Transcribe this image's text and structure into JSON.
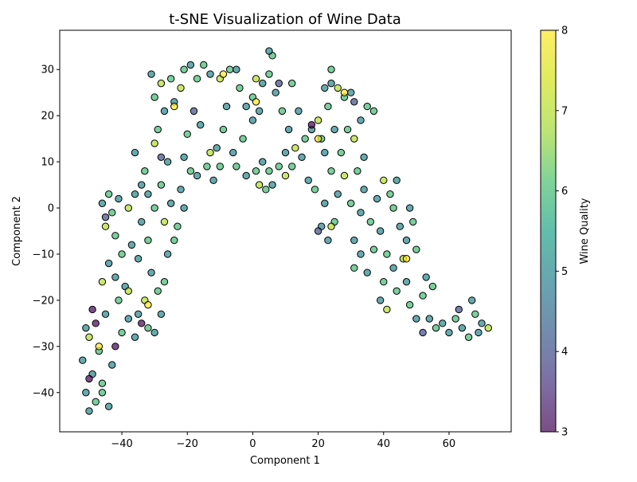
{
  "chart_data": {
    "type": "scatter",
    "title": "t-SNE Visualization of Wine Data",
    "xlabel": "Component 1",
    "ylabel": "Component 2",
    "xlim": [
      -59,
      79
    ],
    "ylim": [
      -48.5,
      38.5
    ],
    "xticks": [
      -40,
      -20,
      0,
      20,
      40,
      60
    ],
    "yticks": [
      -40,
      -30,
      -20,
      -10,
      0,
      10,
      20,
      30
    ],
    "grid": false,
    "colorbar": {
      "label": "Wine Quality",
      "min": 3,
      "max": 8,
      "ticks": [
        3,
        4,
        5,
        6,
        7,
        8
      ],
      "colormap": "viridis",
      "alpha": 0.7
    },
    "marker_edge_color": "#000000",
    "points": [
      {
        "x": -50,
        "y": -44,
        "q": 5
      },
      {
        "x": -48,
        "y": -42,
        "q": 6
      },
      {
        "x": -51,
        "y": -40,
        "q": 5
      },
      {
        "x": -46,
        "y": -38,
        "q": 6
      },
      {
        "x": -49,
        "y": -36,
        "q": 5
      },
      {
        "x": -52,
        "y": -33,
        "q": 5
      },
      {
        "x": -47,
        "y": -31,
        "q": 6
      },
      {
        "x": -50,
        "y": -28,
        "q": 7
      },
      {
        "x": -51,
        "y": -26,
        "q": 5
      },
      {
        "x": -48,
        "y": -25,
        "q": 3
      },
      {
        "x": -45,
        "y": -23,
        "q": 5
      },
      {
        "x": -44,
        "y": -43,
        "q": 5
      },
      {
        "x": -46,
        "y": -40,
        "q": 6
      },
      {
        "x": -43,
        "y": -34,
        "q": 5
      },
      {
        "x": -42,
        "y": -30,
        "q": 3
      },
      {
        "x": -40,
        "y": -27,
        "q": 6
      },
      {
        "x": -38,
        "y": -24,
        "q": 5
      },
      {
        "x": -41,
        "y": -20,
        "q": 6
      },
      {
        "x": -39,
        "y": -17,
        "q": 5
      },
      {
        "x": -42,
        "y": -15,
        "q": 5
      },
      {
        "x": -46,
        "y": -16,
        "q": 7
      },
      {
        "x": -44,
        "y": -12,
        "q": 5
      },
      {
        "x": -40,
        "y": -10,
        "q": 6
      },
      {
        "x": -37,
        "y": -8,
        "q": 5
      },
      {
        "x": -42,
        "y": -6,
        "q": 6
      },
      {
        "x": -45,
        "y": -4,
        "q": 7
      },
      {
        "x": -43,
        "y": -1,
        "q": 6
      },
      {
        "x": -46,
        "y": 1,
        "q": 5
      },
      {
        "x": -44,
        "y": 3,
        "q": 6
      },
      {
        "x": -41,
        "y": 2,
        "q": 5
      },
      {
        "x": -38,
        "y": 0,
        "q": 7
      },
      {
        "x": -36,
        "y": 3,
        "q": 5
      },
      {
        "x": -34,
        "y": 5,
        "q": 5
      },
      {
        "x": -36,
        "y": 12,
        "q": 5
      },
      {
        "x": -33,
        "y": 8,
        "q": 6
      },
      {
        "x": -32,
        "y": 3,
        "q": 5
      },
      {
        "x": -30,
        "y": 0,
        "q": 6
      },
      {
        "x": -34,
        "y": -3,
        "q": 5
      },
      {
        "x": -32,
        "y": -7,
        "q": 6
      },
      {
        "x": -35,
        "y": -11,
        "q": 5
      },
      {
        "x": -31,
        "y": -14,
        "q": 5
      },
      {
        "x": -29,
        "y": -18,
        "q": 6
      },
      {
        "x": -33,
        "y": -20,
        "q": 7
      },
      {
        "x": -35,
        "y": -23,
        "q": 5
      },
      {
        "x": -32,
        "y": -26,
        "q": 6
      },
      {
        "x": -36,
        "y": -28,
        "q": 5
      },
      {
        "x": -30,
        "y": -27,
        "q": 5
      },
      {
        "x": -28,
        "y": -23,
        "q": 5
      },
      {
        "x": -27,
        "y": -16,
        "q": 6
      },
      {
        "x": -26,
        "y": -10,
        "q": 5
      },
      {
        "x": -24,
        "y": -7,
        "q": 6
      },
      {
        "x": -27,
        "y": -3,
        "q": 7
      },
      {
        "x": -25,
        "y": 1,
        "q": 5
      },
      {
        "x": -28,
        "y": 5,
        "q": 6
      },
      {
        "x": -26,
        "y": 10,
        "q": 5
      },
      {
        "x": -30,
        "y": 14,
        "q": 7
      },
      {
        "x": -29,
        "y": 17,
        "q": 6
      },
      {
        "x": -27,
        "y": 21,
        "q": 5
      },
      {
        "x": -30,
        "y": 24,
        "q": 6
      },
      {
        "x": -28,
        "y": 27,
        "q": 7
      },
      {
        "x": -31,
        "y": 29,
        "q": 5
      },
      {
        "x": -25,
        "y": 28,
        "q": 6
      },
      {
        "x": -24,
        "y": 23,
        "q": 5
      },
      {
        "x": -22,
        "y": 26,
        "q": 7
      },
      {
        "x": -21,
        "y": 30,
        "q": 6
      },
      {
        "x": -19,
        "y": 31,
        "q": 5
      },
      {
        "x": -17,
        "y": 28,
        "q": 6
      },
      {
        "x": -15,
        "y": 31,
        "q": 6
      },
      {
        "x": -13,
        "y": 29,
        "q": 5
      },
      {
        "x": -18,
        "y": 21,
        "q": 4
      },
      {
        "x": -16,
        "y": 18,
        "q": 5
      },
      {
        "x": -20,
        "y": 16,
        "q": 6
      },
      {
        "x": -21,
        "y": 11,
        "q": 5
      },
      {
        "x": -19,
        "y": 8,
        "q": 6
      },
      {
        "x": -22,
        "y": 4,
        "q": 5
      },
      {
        "x": -21,
        "y": 0,
        "q": 5
      },
      {
        "x": -23,
        "y": -4,
        "q": 6
      },
      {
        "x": -17,
        "y": 7,
        "q": 5
      },
      {
        "x": -14,
        "y": 9,
        "q": 6
      },
      {
        "x": -12,
        "y": 6,
        "q": 5
      },
      {
        "x": -10,
        "y": 9,
        "q": 6
      },
      {
        "x": -11,
        "y": 13,
        "q": 5
      },
      {
        "x": -9,
        "y": 17,
        "q": 6
      },
      {
        "x": -8,
        "y": 22,
        "q": 5
      },
      {
        "x": -10,
        "y": 28,
        "q": 7
      },
      {
        "x": -7,
        "y": 30,
        "q": 6
      },
      {
        "x": -5,
        "y": 30,
        "q": 5
      },
      {
        "x": -4,
        "y": 26,
        "q": 6
      },
      {
        "x": -2,
        "y": 22,
        "q": 5
      },
      {
        "x": 0,
        "y": 19,
        "q": 5
      },
      {
        "x": -3,
        "y": 15,
        "q": 6
      },
      {
        "x": -6,
        "y": 12,
        "q": 5
      },
      {
        "x": -5,
        "y": 9,
        "q": 6
      },
      {
        "x": -2,
        "y": 7,
        "q": 5
      },
      {
        "x": 1,
        "y": 8,
        "q": 6
      },
      {
        "x": 3,
        "y": 10,
        "q": 5
      },
      {
        "x": 5,
        "y": 8,
        "q": 6
      },
      {
        "x": 2,
        "y": 5,
        "q": 7
      },
      {
        "x": 4,
        "y": 4,
        "q": 6
      },
      {
        "x": 6,
        "y": 5,
        "q": 5
      },
      {
        "x": 8,
        "y": 9,
        "q": 6
      },
      {
        "x": 10,
        "y": 12,
        "q": 5
      },
      {
        "x": 12,
        "y": 9,
        "q": 6
      },
      {
        "x": 13,
        "y": 13,
        "q": 7
      },
      {
        "x": 11,
        "y": 17,
        "q": 5
      },
      {
        "x": 9,
        "y": 21,
        "q": 6
      },
      {
        "x": 7,
        "y": 25,
        "q": 5
      },
      {
        "x": 5,
        "y": 29,
        "q": 6
      },
      {
        "x": 6,
        "y": 33,
        "q": 6
      },
      {
        "x": 5,
        "y": 34,
        "q": 5
      },
      {
        "x": 3,
        "y": 27,
        "q": 5
      },
      {
        "x": 1,
        "y": 28,
        "q": 7
      },
      {
        "x": 0,
        "y": 24,
        "q": 6
      },
      {
        "x": 2,
        "y": 21,
        "q": 5
      },
      {
        "x": 12,
        "y": 27,
        "q": 6
      },
      {
        "x": 14,
        "y": 21,
        "q": 5
      },
      {
        "x": 16,
        "y": 15,
        "q": 6
      },
      {
        "x": 15,
        "y": 11,
        "q": 5
      },
      {
        "x": 17,
        "y": 6,
        "q": 5
      },
      {
        "x": 19,
        "y": 4,
        "q": 6
      },
      {
        "x": 18,
        "y": 17,
        "q": 5
      },
      {
        "x": 20,
        "y": 19,
        "q": 7
      },
      {
        "x": 21,
        "y": 15,
        "q": 6
      },
      {
        "x": 22,
        "y": 12,
        "q": 5
      },
      {
        "x": 24,
        "y": 8,
        "q": 6
      },
      {
        "x": 22,
        "y": 1,
        "q": 5
      },
      {
        "x": 21,
        "y": -4,
        "q": 5
      },
      {
        "x": 20,
        "y": -5,
        "q": 4
      },
      {
        "x": 23,
        "y": -7,
        "q": 5
      },
      {
        "x": 25,
        "y": -3,
        "q": 6
      },
      {
        "x": 26,
        "y": 3,
        "q": 5
      },
      {
        "x": 28,
        "y": 7,
        "q": 7
      },
      {
        "x": 27,
        "y": 12,
        "q": 6
      },
      {
        "x": 25,
        "y": 17,
        "q": 5
      },
      {
        "x": 23,
        "y": 22,
        "q": 6
      },
      {
        "x": 24,
        "y": 27,
        "q": 5
      },
      {
        "x": 22,
        "y": 26,
        "q": 5
      },
      {
        "x": 24,
        "y": 30,
        "q": 6
      },
      {
        "x": 26,
        "y": 26,
        "q": 7
      },
      {
        "x": 28,
        "y": 24,
        "q": 6
      },
      {
        "x": 30,
        "y": 25,
        "q": 5
      },
      {
        "x": 31,
        "y": 23,
        "q": 4
      },
      {
        "x": 29,
        "y": 17,
        "q": 6
      },
      {
        "x": 31,
        "y": 15,
        "q": 7
      },
      {
        "x": 33,
        "y": 19,
        "q": 5
      },
      {
        "x": 35,
        "y": 22,
        "q": 6
      },
      {
        "x": 37,
        "y": 21,
        "q": 6
      },
      {
        "x": 34,
        "y": 11,
        "q": 5
      },
      {
        "x": 32,
        "y": 8,
        "q": 6
      },
      {
        "x": 34,
        "y": 4,
        "q": 5
      },
      {
        "x": 30,
        "y": 1,
        "q": 6
      },
      {
        "x": 33,
        "y": -1,
        "q": 5
      },
      {
        "x": 36,
        "y": -3,
        "q": 6
      },
      {
        "x": 31,
        "y": -7,
        "q": 5
      },
      {
        "x": 33,
        "y": -10,
        "q": 5
      },
      {
        "x": 31,
        "y": -13,
        "q": 6
      },
      {
        "x": 35,
        "y": -14,
        "q": 5
      },
      {
        "x": 37,
        "y": -9,
        "q": 6
      },
      {
        "x": 39,
        "y": -5,
        "q": 5
      },
      {
        "x": 38,
        "y": 2,
        "q": 5
      },
      {
        "x": 40,
        "y": 6,
        "q": 7
      },
      {
        "x": 42,
        "y": 3,
        "q": 6
      },
      {
        "x": 44,
        "y": 6,
        "q": 5
      },
      {
        "x": 43,
        "y": 0,
        "q": 6
      },
      {
        "x": 45,
        "y": -4,
        "q": 5
      },
      {
        "x": 41,
        "y": -10,
        "q": 6
      },
      {
        "x": 43,
        "y": -13,
        "q": 5
      },
      {
        "x": 40,
        "y": -16,
        "q": 6
      },
      {
        "x": 39,
        "y": -20,
        "q": 5
      },
      {
        "x": 41,
        "y": -22,
        "q": 7
      },
      {
        "x": 44,
        "y": -18,
        "q": 6
      },
      {
        "x": 46,
        "y": -11,
        "q": 7
      },
      {
        "x": 47,
        "y": -7,
        "q": 5
      },
      {
        "x": 49,
        "y": -3,
        "q": 6
      },
      {
        "x": 48,
        "y": 0,
        "q": 5
      },
      {
        "x": 50,
        "y": -9,
        "q": 6
      },
      {
        "x": 47,
        "y": -16,
        "q": 5
      },
      {
        "x": 48,
        "y": -21,
        "q": 6
      },
      {
        "x": 50,
        "y": -24,
        "q": 5
      },
      {
        "x": 52,
        "y": -19,
        "q": 6
      },
      {
        "x": 53,
        "y": -15,
        "q": 5
      },
      {
        "x": 55,
        "y": -17,
        "q": 6
      },
      {
        "x": 54,
        "y": -24,
        "q": 5
      },
      {
        "x": 56,
        "y": -26,
        "q": 6
      },
      {
        "x": 58,
        "y": -25,
        "q": 5
      },
      {
        "x": 60,
        "y": -27,
        "q": 5
      },
      {
        "x": 62,
        "y": -24,
        "q": 6
      },
      {
        "x": 64,
        "y": -26,
        "q": 5
      },
      {
        "x": 66,
        "y": -28,
        "q": 6
      },
      {
        "x": 67,
        "y": -20,
        "q": 5
      },
      {
        "x": 68,
        "y": -23,
        "q": 6
      },
      {
        "x": 69,
        "y": -27,
        "q": 5
      },
      {
        "x": 70,
        "y": -25,
        "q": 5
      },
      {
        "x": 72,
        "y": -26,
        "q": 7
      },
      {
        "x": -47,
        "y": -30,
        "q": 8
      },
      {
        "x": -32,
        "y": -21,
        "q": 8
      },
      {
        "x": -24,
        "y": 22,
        "q": 8
      },
      {
        "x": -9,
        "y": 29,
        "q": 8
      },
      {
        "x": 1,
        "y": 23,
        "q": 8
      },
      {
        "x": 20,
        "y": 15,
        "q": 8
      },
      {
        "x": 28,
        "y": 25,
        "q": 8
      },
      {
        "x": 47,
        "y": -11,
        "q": 8
      },
      {
        "x": 24,
        "y": -4,
        "q": 7
      },
      {
        "x": 10,
        "y": 7,
        "q": 7
      },
      {
        "x": -13,
        "y": 12,
        "q": 7
      },
      {
        "x": -38,
        "y": -18,
        "q": 7
      },
      {
        "x": -49,
        "y": -22,
        "q": 3
      },
      {
        "x": -45,
        "y": -2,
        "q": 4
      },
      {
        "x": -34,
        "y": -25,
        "q": 3
      },
      {
        "x": 52,
        "y": -27,
        "q": 4
      },
      {
        "x": 63,
        "y": -22,
        "q": 4
      },
      {
        "x": -50,
        "y": -37,
        "q": 3
      },
      {
        "x": -28,
        "y": 11,
        "q": 4
      },
      {
        "x": 8,
        "y": 27,
        "q": 4
      },
      {
        "x": 18,
        "y": 18,
        "q": 3
      }
    ]
  }
}
